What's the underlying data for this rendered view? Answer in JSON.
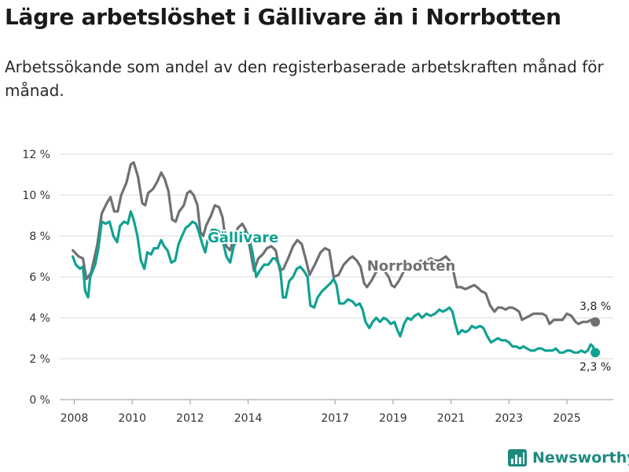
{
  "header": {
    "title": "Lägre arbetslöshet i Gällivare än i Norrbotten",
    "subtitle": "Arbetssökande som andel av den registerbaserade arbetskraften månad för månad."
  },
  "brand": {
    "name": "Newsworthy",
    "color": "#1d8a7e"
  },
  "chart_data": {
    "type": "line",
    "title": "Lägre arbetslöshet i Gällivare än i Norrbotten",
    "ylabel": "",
    "xlabel": "",
    "ylim": [
      0,
      12
    ],
    "xlim": [
      2007.5,
      2026.6
    ],
    "y_ticks": [
      0,
      2,
      4,
      6,
      8,
      10,
      12
    ],
    "y_tick_labels": [
      "0 %",
      "2 %",
      "4 %",
      "6 %",
      "8 %",
      "10 %",
      "12 %"
    ],
    "x_ticks": [
      2008,
      2010,
      2012,
      2014,
      2017,
      2019,
      2021,
      2023,
      2025
    ],
    "x_tick_labels": [
      "2008",
      "2010",
      "2012",
      "2014",
      "2017",
      "2019",
      "2021",
      "2023",
      "2025"
    ],
    "grid": true,
    "series": [
      {
        "name": "Norrbotten",
        "label": "Norrbotten",
        "color": "#707074",
        "end_label": "3,8 %",
        "points": [
          [
            2007.95,
            7.3
          ],
          [
            2008.15,
            7.0
          ],
          [
            2008.3,
            6.9
          ],
          [
            2008.42,
            5.9
          ],
          [
            2008.58,
            6.2
          ],
          [
            2008.8,
            7.6
          ],
          [
            2008.95,
            9.1
          ],
          [
            2009.12,
            9.6
          ],
          [
            2009.25,
            9.9
          ],
          [
            2009.38,
            9.2
          ],
          [
            2009.5,
            9.2
          ],
          [
            2009.62,
            10.0
          ],
          [
            2009.8,
            10.6
          ],
          [
            2009.95,
            11.5
          ],
          [
            2010.05,
            11.6
          ],
          [
            2010.2,
            10.9
          ],
          [
            2010.35,
            9.6
          ],
          [
            2010.45,
            9.5
          ],
          [
            2010.55,
            10.1
          ],
          [
            2010.72,
            10.3
          ],
          [
            2010.88,
            10.7
          ],
          [
            2011.0,
            11.1
          ],
          [
            2011.12,
            10.8
          ],
          [
            2011.25,
            10.2
          ],
          [
            2011.38,
            8.8
          ],
          [
            2011.5,
            8.7
          ],
          [
            2011.62,
            9.2
          ],
          [
            2011.78,
            9.5
          ],
          [
            2011.9,
            10.1
          ],
          [
            2012.0,
            10.2
          ],
          [
            2012.12,
            10.0
          ],
          [
            2012.25,
            9.5
          ],
          [
            2012.35,
            8.2
          ],
          [
            2012.45,
            8.0
          ],
          [
            2012.55,
            8.5
          ],
          [
            2012.72,
            9.0
          ],
          [
            2012.85,
            9.5
          ],
          [
            2013.0,
            9.4
          ],
          [
            2013.12,
            8.9
          ],
          [
            2013.25,
            7.5
          ],
          [
            2013.38,
            7.3
          ],
          [
            2013.5,
            7.9
          ],
          [
            2013.65,
            8.4
          ],
          [
            2013.8,
            8.6
          ],
          [
            2013.92,
            8.3
          ],
          [
            2014.05,
            7.5
          ],
          [
            2014.2,
            6.3
          ],
          [
            2014.35,
            6.9
          ],
          [
            2014.5,
            7.1
          ],
          [
            2014.65,
            7.4
          ],
          [
            2014.8,
            7.5
          ],
          [
            2014.95,
            7.3
          ],
          [
            2015.1,
            6.3
          ],
          [
            2015.22,
            6.4
          ],
          [
            2015.38,
            6.9
          ],
          [
            2015.55,
            7.5
          ],
          [
            2015.7,
            7.8
          ],
          [
            2015.85,
            7.6
          ],
          [
            2016.0,
            6.8
          ],
          [
            2016.12,
            6.1
          ],
          [
            2016.3,
            6.6
          ],
          [
            2016.5,
            7.2
          ],
          [
            2016.65,
            7.4
          ],
          [
            2016.8,
            7.3
          ],
          [
            2016.95,
            6.0
          ],
          [
            2017.12,
            6.1
          ],
          [
            2017.3,
            6.6
          ],
          [
            2017.5,
            6.9
          ],
          [
            2017.6,
            7.0
          ],
          [
            2017.75,
            6.8
          ],
          [
            2017.88,
            6.5
          ],
          [
            2018.0,
            5.7
          ],
          [
            2018.1,
            5.5
          ],
          [
            2018.25,
            5.8
          ],
          [
            2018.4,
            6.2
          ],
          [
            2018.55,
            6.5
          ],
          [
            2018.7,
            6.3
          ],
          [
            2018.85,
            6.0
          ],
          [
            2018.95,
            5.6
          ],
          [
            2019.05,
            5.5
          ],
          [
            2019.2,
            5.8
          ],
          [
            2019.38,
            6.3
          ],
          [
            2019.55,
            6.5
          ],
          [
            2019.7,
            6.5
          ],
          [
            2019.85,
            6.7
          ],
          [
            2020.0,
            6.8
          ],
          [
            2020.15,
            6.8
          ],
          [
            2020.3,
            6.9
          ],
          [
            2020.45,
            6.8
          ],
          [
            2020.6,
            6.8
          ],
          [
            2020.72,
            6.9
          ],
          [
            2020.82,
            7.0
          ],
          [
            2020.95,
            6.8
          ],
          [
            2021.05,
            6.5
          ],
          [
            2021.2,
            5.5
          ],
          [
            2021.35,
            5.5
          ],
          [
            2021.5,
            5.4
          ],
          [
            2021.65,
            5.5
          ],
          [
            2021.8,
            5.6
          ],
          [
            2021.9,
            5.5
          ],
          [
            2022.05,
            5.3
          ],
          [
            2022.2,
            5.2
          ],
          [
            2022.35,
            4.6
          ],
          [
            2022.5,
            4.3
          ],
          [
            2022.62,
            4.5
          ],
          [
            2022.75,
            4.5
          ],
          [
            2022.88,
            4.4
          ],
          [
            2023.0,
            4.5
          ],
          [
            2023.12,
            4.5
          ],
          [
            2023.25,
            4.4
          ],
          [
            2023.35,
            4.3
          ],
          [
            2023.45,
            3.9
          ],
          [
            2023.58,
            4.0
          ],
          [
            2023.72,
            4.1
          ],
          [
            2023.85,
            4.2
          ],
          [
            2024.0,
            4.2
          ],
          [
            2024.15,
            4.2
          ],
          [
            2024.28,
            4.1
          ],
          [
            2024.4,
            3.7
          ],
          [
            2024.55,
            3.9
          ],
          [
            2024.7,
            3.9
          ],
          [
            2024.85,
            3.9
          ],
          [
            2025.0,
            4.2
          ],
          [
            2025.15,
            4.1
          ],
          [
            2025.3,
            3.8
          ],
          [
            2025.4,
            3.7
          ],
          [
            2025.55,
            3.8
          ],
          [
            2025.7,
            3.8
          ],
          [
            2025.85,
            3.9
          ],
          [
            2025.98,
            3.8
          ]
        ]
      },
      {
        "name": "Gällivare",
        "label": "Gällivare",
        "color": "#11a192",
        "end_label": "2,3 %",
        "points": [
          [
            2007.95,
            7.0
          ],
          [
            2008.05,
            6.6
          ],
          [
            2008.2,
            6.4
          ],
          [
            2008.3,
            6.5
          ],
          [
            2008.38,
            5.3
          ],
          [
            2008.48,
            5.0
          ],
          [
            2008.55,
            6.0
          ],
          [
            2008.72,
            6.6
          ],
          [
            2008.82,
            7.3
          ],
          [
            2008.95,
            8.7
          ],
          [
            2009.08,
            8.6
          ],
          [
            2009.22,
            8.7
          ],
          [
            2009.35,
            8.0
          ],
          [
            2009.48,
            7.7
          ],
          [
            2009.58,
            8.5
          ],
          [
            2009.72,
            8.7
          ],
          [
            2009.85,
            8.6
          ],
          [
            2009.95,
            9.2
          ],
          [
            2010.05,
            8.8
          ],
          [
            2010.18,
            8.0
          ],
          [
            2010.3,
            6.8
          ],
          [
            2010.42,
            6.4
          ],
          [
            2010.52,
            7.2
          ],
          [
            2010.65,
            7.1
          ],
          [
            2010.75,
            7.4
          ],
          [
            2010.88,
            7.4
          ],
          [
            2011.0,
            7.8
          ],
          [
            2011.1,
            7.5
          ],
          [
            2011.22,
            7.3
          ],
          [
            2011.35,
            6.7
          ],
          [
            2011.48,
            6.8
          ],
          [
            2011.6,
            7.6
          ],
          [
            2011.72,
            8.0
          ],
          [
            2011.85,
            8.4
          ],
          [
            2011.95,
            8.5
          ],
          [
            2012.08,
            8.7
          ],
          [
            2012.2,
            8.6
          ],
          [
            2012.3,
            8.2
          ],
          [
            2012.42,
            7.6
          ],
          [
            2012.52,
            7.2
          ],
          [
            2012.62,
            7.9
          ],
          [
            2012.75,
            8.3
          ],
          [
            2012.88,
            8.3
          ],
          [
            2013.0,
            8.2
          ],
          [
            2013.12,
            7.8
          ],
          [
            2013.25,
            7.0
          ],
          [
            2013.38,
            6.7
          ],
          [
            2013.5,
            7.5
          ],
          [
            2013.62,
            7.8
          ],
          [
            2013.75,
            8.1
          ],
          [
            2013.88,
            8.2
          ],
          [
            2014.0,
            8.1
          ],
          [
            2014.15,
            7.2
          ],
          [
            2014.28,
            6.0
          ],
          [
            2014.4,
            6.3
          ],
          [
            2014.55,
            6.6
          ],
          [
            2014.7,
            6.6
          ],
          [
            2014.85,
            6.9
          ],
          [
            2014.95,
            6.9
          ],
          [
            2015.1,
            6.5
          ],
          [
            2015.2,
            5.0
          ],
          [
            2015.3,
            5.0
          ],
          [
            2015.42,
            5.8
          ],
          [
            2015.55,
            6.0
          ],
          [
            2015.68,
            6.4
          ],
          [
            2015.8,
            6.5
          ],
          [
            2015.92,
            6.3
          ],
          [
            2016.05,
            6.0
          ],
          [
            2016.15,
            4.6
          ],
          [
            2016.28,
            4.5
          ],
          [
            2016.4,
            5.0
          ],
          [
            2016.55,
            5.3
          ],
          [
            2016.7,
            5.5
          ],
          [
            2016.85,
            5.7
          ],
          [
            2016.95,
            5.9
          ],
          [
            2017.05,
            5.6
          ],
          [
            2017.15,
            4.7
          ],
          [
            2017.3,
            4.7
          ],
          [
            2017.45,
            4.9
          ],
          [
            2017.6,
            4.8
          ],
          [
            2017.72,
            4.6
          ],
          [
            2017.85,
            4.7
          ],
          [
            2017.95,
            4.4
          ],
          [
            2018.05,
            3.8
          ],
          [
            2018.18,
            3.5
          ],
          [
            2018.3,
            3.8
          ],
          [
            2018.42,
            4.0
          ],
          [
            2018.55,
            3.8
          ],
          [
            2018.68,
            4.0
          ],
          [
            2018.8,
            3.9
          ],
          [
            2018.92,
            3.7
          ],
          [
            2019.05,
            3.8
          ],
          [
            2019.15,
            3.4
          ],
          [
            2019.25,
            3.1
          ],
          [
            2019.38,
            3.7
          ],
          [
            2019.5,
            4.0
          ],
          [
            2019.62,
            3.9
          ],
          [
            2019.75,
            4.1
          ],
          [
            2019.88,
            4.2
          ],
          [
            2020.0,
            4.0
          ],
          [
            2020.15,
            4.2
          ],
          [
            2020.3,
            4.1
          ],
          [
            2020.45,
            4.2
          ],
          [
            2020.6,
            4.4
          ],
          [
            2020.72,
            4.3
          ],
          [
            2020.85,
            4.4
          ],
          [
            2020.95,
            4.5
          ],
          [
            2021.05,
            4.3
          ],
          [
            2021.15,
            3.7
          ],
          [
            2021.25,
            3.2
          ],
          [
            2021.38,
            3.4
          ],
          [
            2021.5,
            3.3
          ],
          [
            2021.62,
            3.4
          ],
          [
            2021.72,
            3.6
          ],
          [
            2021.85,
            3.5
          ],
          [
            2022.0,
            3.6
          ],
          [
            2022.12,
            3.5
          ],
          [
            2022.25,
            3.1
          ],
          [
            2022.38,
            2.8
          ],
          [
            2022.5,
            2.9
          ],
          [
            2022.62,
            3.0
          ],
          [
            2022.75,
            2.9
          ],
          [
            2022.88,
            2.9
          ],
          [
            2023.0,
            2.8
          ],
          [
            2023.12,
            2.6
          ],
          [
            2023.25,
            2.6
          ],
          [
            2023.38,
            2.5
          ],
          [
            2023.5,
            2.6
          ],
          [
            2023.62,
            2.5
          ],
          [
            2023.75,
            2.4
          ],
          [
            2023.88,
            2.4
          ],
          [
            2024.0,
            2.5
          ],
          [
            2024.12,
            2.5
          ],
          [
            2024.25,
            2.4
          ],
          [
            2024.38,
            2.4
          ],
          [
            2024.5,
            2.4
          ],
          [
            2024.62,
            2.5
          ],
          [
            2024.75,
            2.3
          ],
          [
            2024.88,
            2.3
          ],
          [
            2025.0,
            2.4
          ],
          [
            2025.12,
            2.4
          ],
          [
            2025.25,
            2.3
          ],
          [
            2025.38,
            2.3
          ],
          [
            2025.5,
            2.4
          ],
          [
            2025.62,
            2.3
          ],
          [
            2025.72,
            2.4
          ],
          [
            2025.82,
            2.7
          ],
          [
            2025.9,
            2.6
          ],
          [
            2025.98,
            2.3
          ]
        ]
      }
    ]
  }
}
